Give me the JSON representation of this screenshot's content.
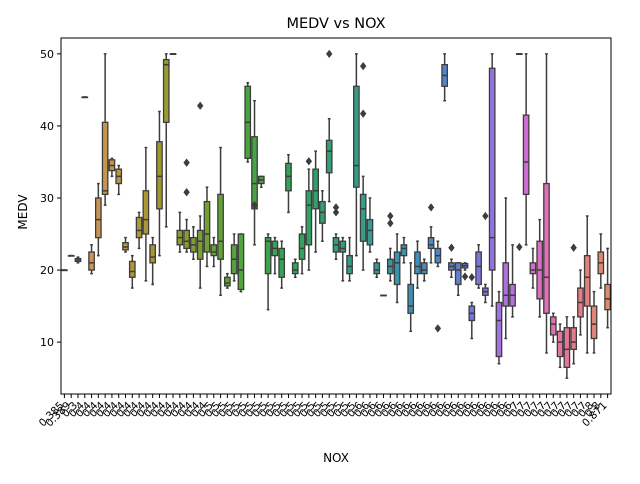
{
  "chart_data": {
    "type": "box",
    "title": "MEDV vs NOX",
    "xlabel": "NOX",
    "ylabel": "MEDV",
    "ylim": [
      2.8,
      52.2
    ],
    "yticks": [
      10,
      20,
      30,
      40,
      50
    ],
    "grid": false,
    "legend": "none",
    "category_count": 81,
    "tick_labels": [
      "0.385",
      "0.389",
      "0.3",
      "0.4",
      "0.4",
      "0.4",
      "0.4",
      "0.4",
      "0.4",
      "0.4",
      "0.4",
      "0.4",
      "0.4",
      "0.4",
      "0.4",
      "0.4",
      "0.4",
      "0.4",
      "0.4",
      "0.4",
      "0.4",
      "0.4",
      "0.5",
      "0.5",
      "0.5",
      "0.5",
      "0.5",
      "0.5",
      "0.5",
      "0.5",
      "0.5",
      "0.5",
      "0.5",
      "0.5",
      "0.5",
      "0.5",
      "0.5",
      "0.5",
      "0.5",
      "0.5",
      "0.5",
      "0.5",
      "0.5",
      "0.5",
      "0.6",
      "0.6",
      "0.6",
      "0.6",
      "0.6",
      "0.6",
      "0.6",
      "0.6",
      "0.6",
      "0.6",
      "0.6",
      "0.6",
      "0.6",
      "0.6",
      "0.6",
      "0.6",
      "0.6",
      "0.6",
      "0.6",
      "0.6",
      "0.6",
      "0.6",
      "0.6",
      "0.7",
      "0.7",
      "0.7",
      "0.7",
      "0.7",
      "0.7",
      "0.7",
      "0.7",
      "0.7",
      "0.7",
      "0.7",
      "0.8",
      "0.8",
      "0.871"
    ],
    "boxes": [
      {
        "x": 0,
        "whislo": 20.0,
        "q1": 20.0,
        "med": 20.0,
        "q3": 20.0,
        "whishi": 20.0,
        "color": "#e07a7a"
      },
      {
        "x": 1,
        "whislo": 22.0,
        "q1": 22.0,
        "med": 22.0,
        "q3": 22.0,
        "whishi": 22.0,
        "color": "#dd8a6a"
      },
      {
        "x": 2,
        "whislo": 21.0,
        "q1": 21.2,
        "med": 21.4,
        "q3": 21.6,
        "whishi": 21.8,
        "color": "#d99060"
      },
      {
        "x": 3,
        "whislo": 44.0,
        "q1": 44.0,
        "med": 44.0,
        "q3": 44.0,
        "whishi": 44.0,
        "color": "#d3955c"
      },
      {
        "x": 4,
        "whislo": 19.5,
        "q1": 20.0,
        "med": 21.0,
        "q3": 22.5,
        "whishi": 23.5,
        "color": "#cf9557"
      },
      {
        "x": 5,
        "whislo": 22.0,
        "q1": 24.5,
        "med": 27.0,
        "q3": 30.0,
        "whishi": 32.0,
        "color": "#c99452"
      },
      {
        "x": 6,
        "whislo": 29.0,
        "q1": 30.5,
        "med": 31.0,
        "q3": 40.5,
        "whishi": 50.0,
        "color": "#c5944d"
      },
      {
        "x": 7,
        "whislo": 33.0,
        "q1": 33.8,
        "med": 34.5,
        "q3": 35.3,
        "whishi": 35.5,
        "color": "#c19448"
      },
      {
        "x": 8,
        "whislo": 30.5,
        "q1": 32.0,
        "med": 33.0,
        "q3": 34.0,
        "whishi": 34.5,
        "color": "#bd9444"
      },
      {
        "x": 9,
        "whislo": 22.5,
        "q1": 22.8,
        "med": 23.2,
        "q3": 23.8,
        "whishi": 24.5,
        "color": "#b89540"
      },
      {
        "x": 10,
        "whislo": 17.5,
        "q1": 19.0,
        "med": 19.8,
        "q3": 21.2,
        "whishi": 22.0,
        "color": "#b3953c"
      },
      {
        "x": 11,
        "whislo": 23.0,
        "q1": 24.5,
        "med": 25.5,
        "q3": 27.3,
        "whishi": 28.0,
        "color": "#af9639"
      },
      {
        "x": 12,
        "whislo": 18.5,
        "q1": 25.0,
        "med": 27.0,
        "q3": 31.0,
        "whishi": 37.0,
        "color": "#aa9736"
      },
      {
        "x": 13,
        "whislo": 18.0,
        "q1": 21.0,
        "med": 21.8,
        "q3": 23.5,
        "whishi": 24.5,
        "color": "#a59834"
      },
      {
        "x": 14,
        "whislo": 22.0,
        "q1": 28.5,
        "med": 33.0,
        "q3": 37.8,
        "whishi": 42.0,
        "color": "#a09932"
      },
      {
        "x": 15,
        "whislo": 26.0,
        "q1": 40.5,
        "med": 48.5,
        "q3": 49.2,
        "whishi": 50.0,
        "color": "#9a9a31"
      },
      {
        "x": 16,
        "whislo": 50.0,
        "q1": 50.0,
        "med": 50.0,
        "q3": 50.0,
        "whishi": 50.0,
        "color": "#949b30"
      },
      {
        "x": 17,
        "whislo": 22.5,
        "q1": 23.5,
        "med": 24.5,
        "q3": 25.5,
        "whishi": 28.0,
        "color": "#8e9c30"
      },
      {
        "x": 18,
        "whislo": 22.5,
        "q1": 23.0,
        "med": 24.0,
        "q3": 25.5,
        "whishi": 27.0,
        "color": "#889d30",
        "fliers": [
          30.8,
          34.9
        ]
      },
      {
        "x": 19,
        "whislo": 21.5,
        "q1": 22.5,
        "med": 23.5,
        "q3": 24.5,
        "whishi": 26.0,
        "color": "#819e31"
      },
      {
        "x": 20,
        "whislo": 17.5,
        "q1": 21.5,
        "med": 24.0,
        "q3": 25.5,
        "whishi": 27.5,
        "color": "#7a9f32",
        "fliers": [
          42.8
        ]
      },
      {
        "x": 21,
        "whislo": 20.5,
        "q1": 22.5,
        "med": 25.0,
        "q3": 29.5,
        "whishi": 31.5,
        "color": "#73a033"
      },
      {
        "x": 22,
        "whislo": 20.5,
        "q1": 22.0,
        "med": 22.5,
        "q3": 23.5,
        "whishi": 24.5,
        "color": "#6ba134"
      },
      {
        "x": 23,
        "whislo": 16.5,
        "q1": 21.5,
        "med": 24.0,
        "q3": 30.5,
        "whishi": 37.0,
        "color": "#64a236"
      },
      {
        "x": 24,
        "whislo": 17.5,
        "q1": 17.8,
        "med": 18.2,
        "q3": 19.0,
        "whishi": 19.5,
        "color": "#5da338"
      },
      {
        "x": 25,
        "whislo": 18.5,
        "q1": 19.5,
        "med": 21.5,
        "q3": 23.5,
        "whishi": 25.0,
        "color": "#56a33a"
      },
      {
        "x": 26,
        "whislo": 17.0,
        "q1": 17.3,
        "med": 20.0,
        "q3": 25.0,
        "whishi": 25.0,
        "color": "#50a43d"
      },
      {
        "x": 27,
        "whislo": 35.0,
        "q1": 35.5,
        "med": 40.5,
        "q3": 45.5,
        "whishi": 46.0,
        "color": "#4aa440"
      },
      {
        "x": 28,
        "whislo": 23.5,
        "q1": 28.5,
        "med": 32.0,
        "q3": 38.5,
        "whishi": 43.5,
        "color": "#45a443",
        "fliers": [
          29.0
        ]
      },
      {
        "x": 29,
        "whislo": 31.5,
        "q1": 32.0,
        "med": 32.5,
        "q3": 33.0,
        "whishi": 33.0,
        "color": "#40a446"
      },
      {
        "x": 30,
        "whislo": 14.5,
        "q1": 19.5,
        "med": 24.0,
        "q3": 24.5,
        "whishi": 25.0,
        "color": "#3ca44a"
      },
      {
        "x": 31,
        "whislo": 19.5,
        "q1": 22.0,
        "med": 23.0,
        "q3": 24.0,
        "whishi": 24.5,
        "color": "#38a44e"
      },
      {
        "x": 32,
        "whislo": 17.5,
        "q1": 19.0,
        "med": 21.5,
        "q3": 23.0,
        "whishi": 24.0,
        "color": "#35a452"
      },
      {
        "x": 33,
        "whislo": 28.0,
        "q1": 31.0,
        "med": 33.0,
        "q3": 34.8,
        "whishi": 36.0,
        "color": "#33a456"
      },
      {
        "x": 34,
        "whislo": 19.0,
        "q1": 19.5,
        "med": 20.0,
        "q3": 21.0,
        "whishi": 21.5,
        "color": "#32a35b"
      },
      {
        "x": 35,
        "whislo": 19.5,
        "q1": 21.5,
        "med": 23.0,
        "q3": 25.0,
        "whishi": 26.0,
        "color": "#31a35f"
      },
      {
        "x": 36,
        "whislo": 20.0,
        "q1": 23.5,
        "med": 29.0,
        "q3": 31.0,
        "whishi": 34.0,
        "color": "#30a364",
        "fliers": [
          35.1
        ]
      },
      {
        "x": 37,
        "whislo": 22.5,
        "q1": 28.5,
        "med": 31.0,
        "q3": 34.0,
        "whishi": 36.5,
        "color": "#30a269"
      },
      {
        "x": 38,
        "whislo": 24.0,
        "q1": 26.5,
        "med": 28.0,
        "q3": 29.5,
        "whishi": 31.0,
        "color": "#31a16e"
      },
      {
        "x": 39,
        "whislo": 29.5,
        "q1": 33.5,
        "med": 36.5,
        "q3": 38.0,
        "whishi": 41.0,
        "color": "#32a173",
        "fliers": [
          50.0
        ]
      },
      {
        "x": 40,
        "whislo": 21.5,
        "q1": 22.5,
        "med": 23.5,
        "q3": 24.5,
        "whishi": 25.0,
        "color": "#32a078",
        "fliers": [
          28.0,
          28.7
        ]
      },
      {
        "x": 41,
        "whislo": 18.5,
        "q1": 22.5,
        "med": 23.0,
        "q3": 24.0,
        "whishi": 24.5,
        "color": "#339f7d"
      },
      {
        "x": 42,
        "whislo": 18.5,
        "q1": 19.5,
        "med": 20.5,
        "q3": 22.0,
        "whishi": 24.5,
        "color": "#349e82"
      },
      {
        "x": 43,
        "whislo": 22.0,
        "q1": 31.5,
        "med": 34.5,
        "q3": 45.5,
        "whishi": 50.0,
        "color": "#359d87"
      },
      {
        "x": 44,
        "whislo": 20.0,
        "q1": 24.0,
        "med": 28.5,
        "q3": 30.5,
        "whishi": 33.0,
        "color": "#369c8c",
        "fliers": [
          41.7,
          48.3
        ]
      },
      {
        "x": 45,
        "whislo": 22.5,
        "q1": 23.5,
        "med": 25.5,
        "q3": 27.0,
        "whishi": 30.0,
        "color": "#379b91"
      },
      {
        "x": 46,
        "whislo": 19.0,
        "q1": 19.5,
        "med": 20.0,
        "q3": 21.0,
        "whishi": 21.5,
        "color": "#389a96"
      },
      {
        "x": 47,
        "whislo": 16.5,
        "q1": 16.5,
        "med": 16.5,
        "q3": 16.5,
        "whishi": 16.5,
        "color": "#39989c"
      },
      {
        "x": 48,
        "whislo": 18.5,
        "q1": 19.5,
        "med": 20.5,
        "q3": 21.5,
        "whishi": 23.0,
        "color": "#3a97a2",
        "fliers": [
          26.5,
          27.5
        ]
      },
      {
        "x": 49,
        "whislo": 15.5,
        "q1": 18.0,
        "med": 21.0,
        "q3": 22.5,
        "whishi": 25.0,
        "color": "#3b95a8"
      },
      {
        "x": 50,
        "whislo": 21.0,
        "q1": 22.0,
        "med": 23.0,
        "q3": 23.5,
        "whishi": 24.5,
        "color": "#3c93ae"
      },
      {
        "x": 51,
        "whislo": 11.5,
        "q1": 14.0,
        "med": 15.0,
        "q3": 18.0,
        "whishi": 21.0,
        "color": "#3e91b4"
      },
      {
        "x": 52,
        "whislo": 17.5,
        "q1": 19.5,
        "med": 20.5,
        "q3": 22.5,
        "whishi": 24.0,
        "color": "#408fba"
      },
      {
        "x": 53,
        "whislo": 18.5,
        "q1": 19.5,
        "med": 20.0,
        "q3": 21.0,
        "whishi": 21.5,
        "color": "#438cc0"
      },
      {
        "x": 54,
        "whislo": 21.0,
        "q1": 23.0,
        "med": 23.5,
        "q3": 24.5,
        "whishi": 26.0,
        "color": "#478ac6",
        "fliers": [
          28.7
        ]
      },
      {
        "x": 55,
        "whislo": 20.5,
        "q1": 21.0,
        "med": 22.0,
        "q3": 23.0,
        "whishi": 24.0,
        "color": "#4c87cb",
        "fliers": [
          11.9
        ]
      },
      {
        "x": 56,
        "whislo": 43.5,
        "q1": 45.5,
        "med": 47.0,
        "q3": 48.5,
        "whishi": 50.0,
        "color": "#5284d0"
      },
      {
        "x": 57,
        "whislo": 19.0,
        "q1": 20.0,
        "med": 20.5,
        "q3": 21.0,
        "whishi": 21.5,
        "color": "#5981d4",
        "fliers": [
          23.1
        ]
      },
      {
        "x": 58,
        "whislo": 16.5,
        "q1": 18.0,
        "med": 20.0,
        "q3": 21.0,
        "whishi": 21.0,
        "color": "#617ed8"
      },
      {
        "x": 59,
        "whislo": 20.0,
        "q1": 20.3,
        "med": 20.6,
        "q3": 20.9,
        "whishi": 21.0,
        "color": "#6a7bdb",
        "fliers": [
          19.1
        ]
      },
      {
        "x": 60,
        "whislo": 10.5,
        "q1": 13.0,
        "med": 14.0,
        "q3": 15.0,
        "whishi": 15.5,
        "color": "#7378de",
        "fliers": [
          19.0
        ]
      },
      {
        "x": 61,
        "whislo": 17.5,
        "q1": 18.0,
        "med": 20.5,
        "q3": 22.5,
        "whishi": 23.5,
        "color": "#7d76e0"
      },
      {
        "x": 62,
        "whislo": 15.5,
        "q1": 16.5,
        "med": 17.0,
        "q3": 17.5,
        "whishi": 18.0,
        "color": "#8874e1",
        "fliers": [
          27.5
        ]
      },
      {
        "x": 63,
        "whislo": 15.0,
        "q1": 20.0,
        "med": 24.5,
        "q3": 48.0,
        "whishi": 50.0,
        "color": "#9572e1"
      },
      {
        "x": 64,
        "whislo": 7.0,
        "q1": 8.0,
        "med": 13.0,
        "q3": 15.5,
        "whishi": 17.0,
        "color": "#a270e0"
      },
      {
        "x": 65,
        "whislo": 10.5,
        "q1": 15.0,
        "med": 16.5,
        "q3": 21.0,
        "whishi": 30.0,
        "color": "#ae6fdf"
      },
      {
        "x": 66,
        "whislo": 13.5,
        "q1": 15.0,
        "med": 16.5,
        "q3": 18.0,
        "whishi": 23.5,
        "color": "#b96edc"
      },
      {
        "x": 67,
        "whislo": 50.0,
        "q1": 50.0,
        "med": 50.0,
        "q3": 50.0,
        "whishi": 50.0,
        "color": "#c46dd8",
        "fliers": [
          23.2
        ]
      },
      {
        "x": 68,
        "whislo": 23.5,
        "q1": 30.5,
        "med": 35.0,
        "q3": 41.5,
        "whishi": 50.0,
        "color": "#cd6cd2"
      },
      {
        "x": 69,
        "whislo": 17.5,
        "q1": 19.5,
        "med": 20.0,
        "q3": 21.0,
        "whishi": 23.0,
        "color": "#d56dcb"
      },
      {
        "x": 70,
        "whislo": 13.5,
        "q1": 16.0,
        "med": 20.0,
        "q3": 24.0,
        "whishi": 27.0,
        "color": "#db6ec3"
      },
      {
        "x": 71,
        "whislo": 8.5,
        "q1": 14.0,
        "med": 19.0,
        "q3": 32.0,
        "whishi": 50.0,
        "color": "#e06fb9"
      },
      {
        "x": 72,
        "whislo": 10.0,
        "q1": 11.0,
        "med": 12.5,
        "q3": 13.5,
        "whishi": 14.0,
        "color": "#e371ae"
      },
      {
        "x": 73,
        "whislo": 6.5,
        "q1": 8.0,
        "med": 10.0,
        "q3": 11.5,
        "whishi": 12.5,
        "color": "#e573a3"
      },
      {
        "x": 74,
        "whislo": 5.0,
        "q1": 6.5,
        "med": 9.0,
        "q3": 12.0,
        "whishi": 13.5,
        "color": "#e67698"
      },
      {
        "x": 75,
        "whislo": 7.0,
        "q1": 9.0,
        "med": 10.0,
        "q3": 12.0,
        "whishi": 13.5,
        "color": "#e6798e",
        "fliers": [
          23.1
        ]
      },
      {
        "x": 76,
        "whislo": 11.0,
        "q1": 13.5,
        "med": 15.5,
        "q3": 17.5,
        "whishi": 20.0,
        "color": "#e67c85"
      },
      {
        "x": 77,
        "whislo": 8.5,
        "q1": 15.0,
        "med": 19.0,
        "q3": 22.0,
        "whishi": 27.5,
        "color": "#e57f7e"
      },
      {
        "x": 78,
        "whislo": 8.5,
        "q1": 10.5,
        "med": 12.5,
        "q3": 15.0,
        "whishi": 17.0,
        "color": "#e48377"
      },
      {
        "x": 79,
        "whislo": 17.5,
        "q1": 19.5,
        "med": 21.0,
        "q3": 22.5,
        "whishi": 25.0,
        "color": "#e38671"
      },
      {
        "x": 80,
        "whislo": 12.0,
        "q1": 14.5,
        "med": 16.0,
        "q3": 18.0,
        "whishi": 23.0,
        "color": "#e28a6c"
      }
    ]
  }
}
